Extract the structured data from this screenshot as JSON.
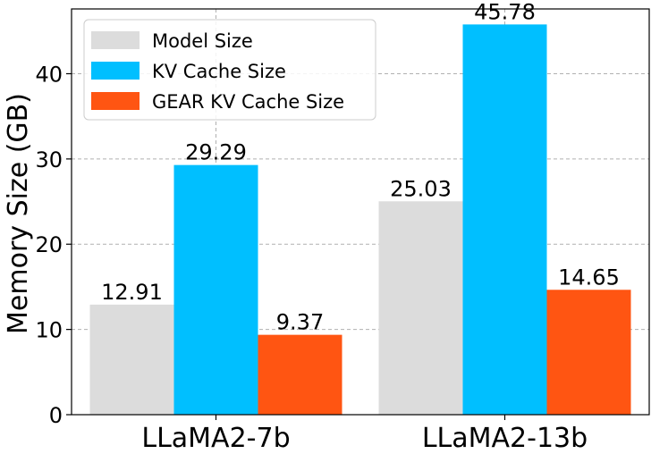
{
  "chart_data": {
    "type": "bar",
    "categories": [
      "LLaMA2-7b",
      "LLaMA2-13b"
    ],
    "series": [
      {
        "name": "Model Size",
        "color": "#dcdcdc",
        "values": [
          12.91,
          25.03
        ],
        "labels": [
          "12.91",
          "25.03"
        ]
      },
      {
        "name": "KV Cache Size",
        "color": "#00bfff",
        "values": [
          29.29,
          45.78
        ],
        "labels": [
          "29.29",
          "45.78"
        ]
      },
      {
        "name": "GEAR KV Cache Size",
        "color": "#ff5512",
        "values": [
          9.37,
          14.65
        ],
        "labels": [
          "9.37",
          "14.65"
        ]
      }
    ],
    "xlabel": "",
    "ylabel": "Memory Size (GB)",
    "ylim": [
      0,
      47.6
    ],
    "yticks": [
      0,
      10,
      20,
      30,
      40
    ],
    "grid": true,
    "legend_position": "top-left"
  }
}
